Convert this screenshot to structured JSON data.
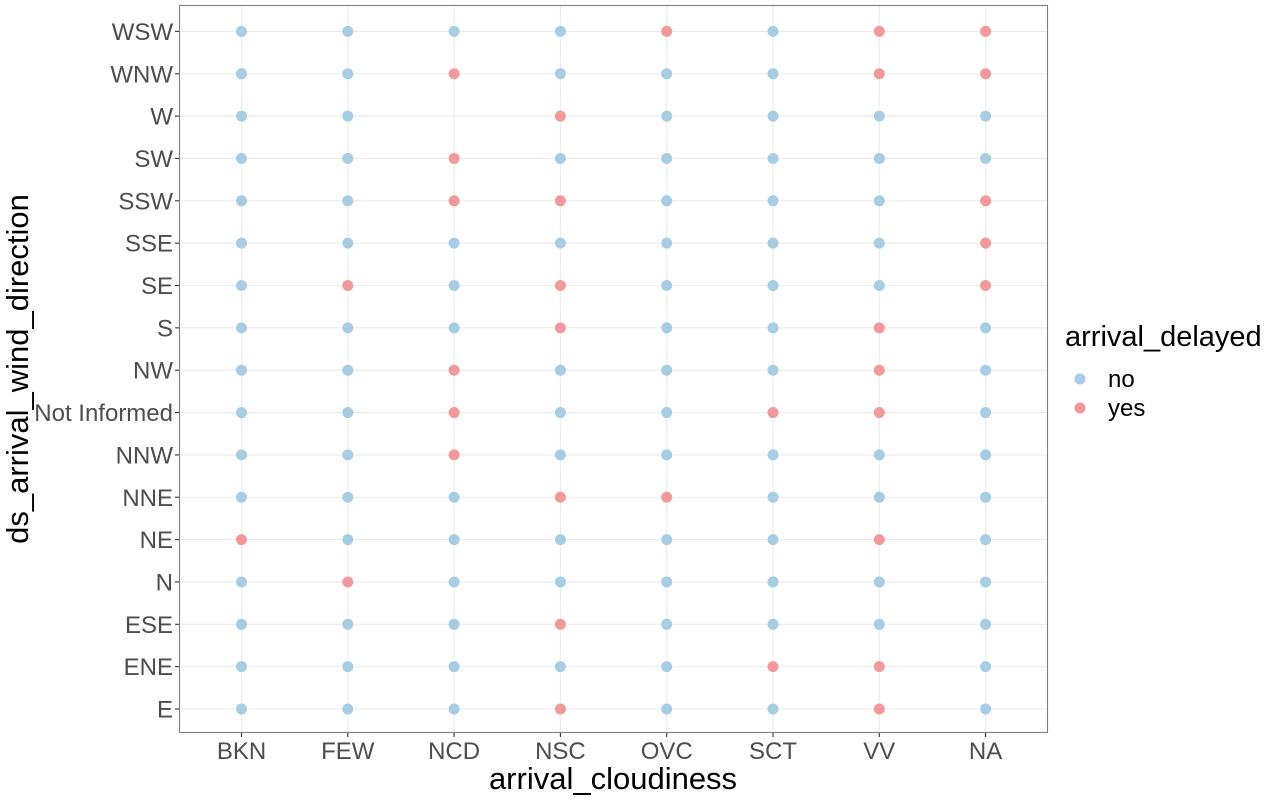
{
  "chart_data": {
    "type": "scatter",
    "title": "",
    "xlabel": "arrival_cloudiness",
    "ylabel": "ds_arrival_wind_direction",
    "x_categories": [
      "BKN",
      "FEW",
      "NCD",
      "NSC",
      "OVC",
      "SCT",
      "VV",
      "NA"
    ],
    "y_categories": [
      "E",
      "ENE",
      "ESE",
      "N",
      "NE",
      "NNE",
      "NNW",
      "Not Informed",
      "NW",
      "S",
      "SE",
      "SSE",
      "SSW",
      "SW",
      "W",
      "WNW",
      "WSW"
    ],
    "grid": true,
    "legend": {
      "title": "arrival_delayed",
      "placement": "right",
      "entries": [
        {
          "label": "no",
          "color": "#a6cde3"
        },
        {
          "label": "yes",
          "color": "#f4999b"
        }
      ]
    },
    "colors": {
      "no": "#a6cde3",
      "yes": "#f4999b"
    },
    "points": {
      "BKN": {
        "WSW": "no",
        "WNW": "no",
        "W": "no",
        "SW": "no",
        "SSW": "no",
        "SSE": "no",
        "SE": "no",
        "S": "no",
        "NW": "no",
        "Not Informed": "no",
        "NNW": "no",
        "NNE": "no",
        "NE": "yes",
        "N": "no",
        "ESE": "no",
        "ENE": "no",
        "E": "no"
      },
      "FEW": {
        "WSW": "no",
        "WNW": "no",
        "W": "no",
        "SW": "no",
        "SSW": "no",
        "SSE": "no",
        "SE": "yes",
        "S": "no",
        "NW": "no",
        "Not Informed": "no",
        "NNW": "no",
        "NNE": "no",
        "NE": "no",
        "N": "yes",
        "ESE": "no",
        "ENE": "no",
        "E": "no"
      },
      "NCD": {
        "WSW": "no",
        "WNW": "yes",
        "SW": "yes",
        "SSW": "yes",
        "SSE": "no",
        "SE": "no",
        "S": "no",
        "NW": "yes",
        "Not Informed": "yes",
        "NNW": "yes",
        "NNE": "no",
        "NE": "no",
        "N": "no",
        "ESE": "no",
        "ENE": "no",
        "E": "no"
      },
      "NSC": {
        "WSW": "no",
        "WNW": "no",
        "W": "yes",
        "SW": "no",
        "SSW": "yes",
        "SSE": "no",
        "SE": "yes",
        "S": "yes",
        "NW": "no",
        "Not Informed": "no",
        "NNW": "no",
        "NNE": "yes",
        "NE": "no",
        "N": "no",
        "ESE": "yes",
        "ENE": "no",
        "E": "yes"
      },
      "OVC": {
        "WSW": "yes",
        "WNW": "no",
        "W": "no",
        "SW": "no",
        "SSW": "no",
        "SSE": "no",
        "SE": "no",
        "S": "no",
        "NW": "no",
        "Not Informed": "no",
        "NNW": "no",
        "NNE": "yes",
        "NE": "no",
        "N": "no",
        "ESE": "no",
        "ENE": "no",
        "E": "no"
      },
      "SCT": {
        "WSW": "no",
        "WNW": "no",
        "W": "no",
        "SW": "no",
        "SSW": "no",
        "SSE": "no",
        "SE": "no",
        "S": "no",
        "NW": "no",
        "Not Informed": "yes",
        "NNW": "no",
        "NNE": "no",
        "NE": "no",
        "N": "no",
        "ESE": "no",
        "ENE": "yes",
        "E": "no"
      },
      "VV": {
        "WSW": "yes",
        "WNW": "yes",
        "W": "no",
        "SW": "no",
        "SSW": "no",
        "SSE": "no",
        "SE": "no",
        "S": "yes",
        "NW": "yes",
        "Not Informed": "yes",
        "NNW": "no",
        "NNE": "no",
        "NE": "yes",
        "N": "no",
        "ESE": "no",
        "ENE": "yes",
        "E": "yes"
      },
      "NA": {
        "WSW": "yes",
        "WNW": "yes",
        "W": "no",
        "SW": "no",
        "SSW": "yes",
        "SSE": "yes",
        "SE": "yes",
        "S": "no",
        "NW": "no",
        "Not Informed": "no",
        "NNW": "no",
        "NNE": "no",
        "NE": "no",
        "N": "no",
        "ESE": "no",
        "ENE": "no",
        "E": "no"
      }
    }
  }
}
